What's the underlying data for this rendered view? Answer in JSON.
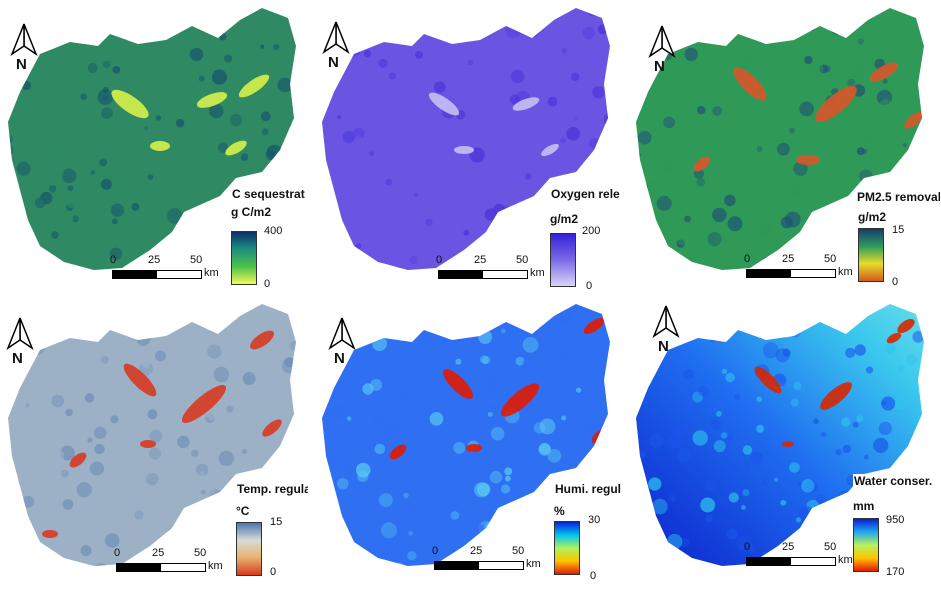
{
  "panels": [
    {
      "title": "C sequestratio",
      "unit": "g C/m2",
      "legend_max": "400",
      "legend_min": "0",
      "gradient": [
        "#0b2e6b",
        "#1f8f7e",
        "#4cc24a",
        "#f4f95a"
      ],
      "base": "#2f8a63",
      "hot": "#d8ef4a",
      "mottle": "#15546f"
    },
    {
      "title": "Oxygen rele",
      "unit": "g/m2",
      "legend_max": "200",
      "legend_min": "0",
      "gradient": [
        "#3523d8",
        "#7b6ae6",
        "#d9d4f7"
      ],
      "base": "#6a55e3",
      "hot": "#c6c0f2",
      "mottle": "#4a35d9"
    },
    {
      "title": "PM2.5 removal",
      "unit": "g/m2",
      "legend_max": "15",
      "legend_min": "0",
      "gradient": [
        "#173d6e",
        "#2e9a5d",
        "#e6dc2a",
        "#d35a1c"
      ],
      "base": "#2f9a57",
      "hot": "#d9552a",
      "mottle": "#1f4f7a"
    },
    {
      "title": "Temp. regulat",
      "unit": "°C",
      "legend_max": "15",
      "legend_min": "0",
      "gradient": [
        "#4a76b2",
        "#d9dbd6",
        "#e6b36d",
        "#d73a20"
      ],
      "base": "#9db1c6",
      "hot": "#d73a20",
      "mottle": "#6f8fb6"
    },
    {
      "title": "Humi. regul",
      "unit": "%",
      "legend_max": "30",
      "legend_min": "0",
      "gradient": [
        "#0a22d6",
        "#00c4f0",
        "#aef25a",
        "#ffc400",
        "#e21a00"
      ],
      "base": "#2f6ff2",
      "hot": "#e21a00",
      "mottle": "#58c9f2"
    },
    {
      "title": "Water conser.",
      "unit": "mm",
      "legend_max": "950",
      "legend_min": "170",
      "gradient": [
        "#0a1ed6",
        "#1ea7ee",
        "#b5f15e",
        "#ffc400",
        "#e21a00"
      ],
      "base": "#1b55ea",
      "hot": "#d62800",
      "mottle": "#2fc4ee"
    }
  ],
  "north_label": "N",
  "scalebar": {
    "ticks": [
      "0",
      "25",
      "50"
    ],
    "unit": "km"
  }
}
